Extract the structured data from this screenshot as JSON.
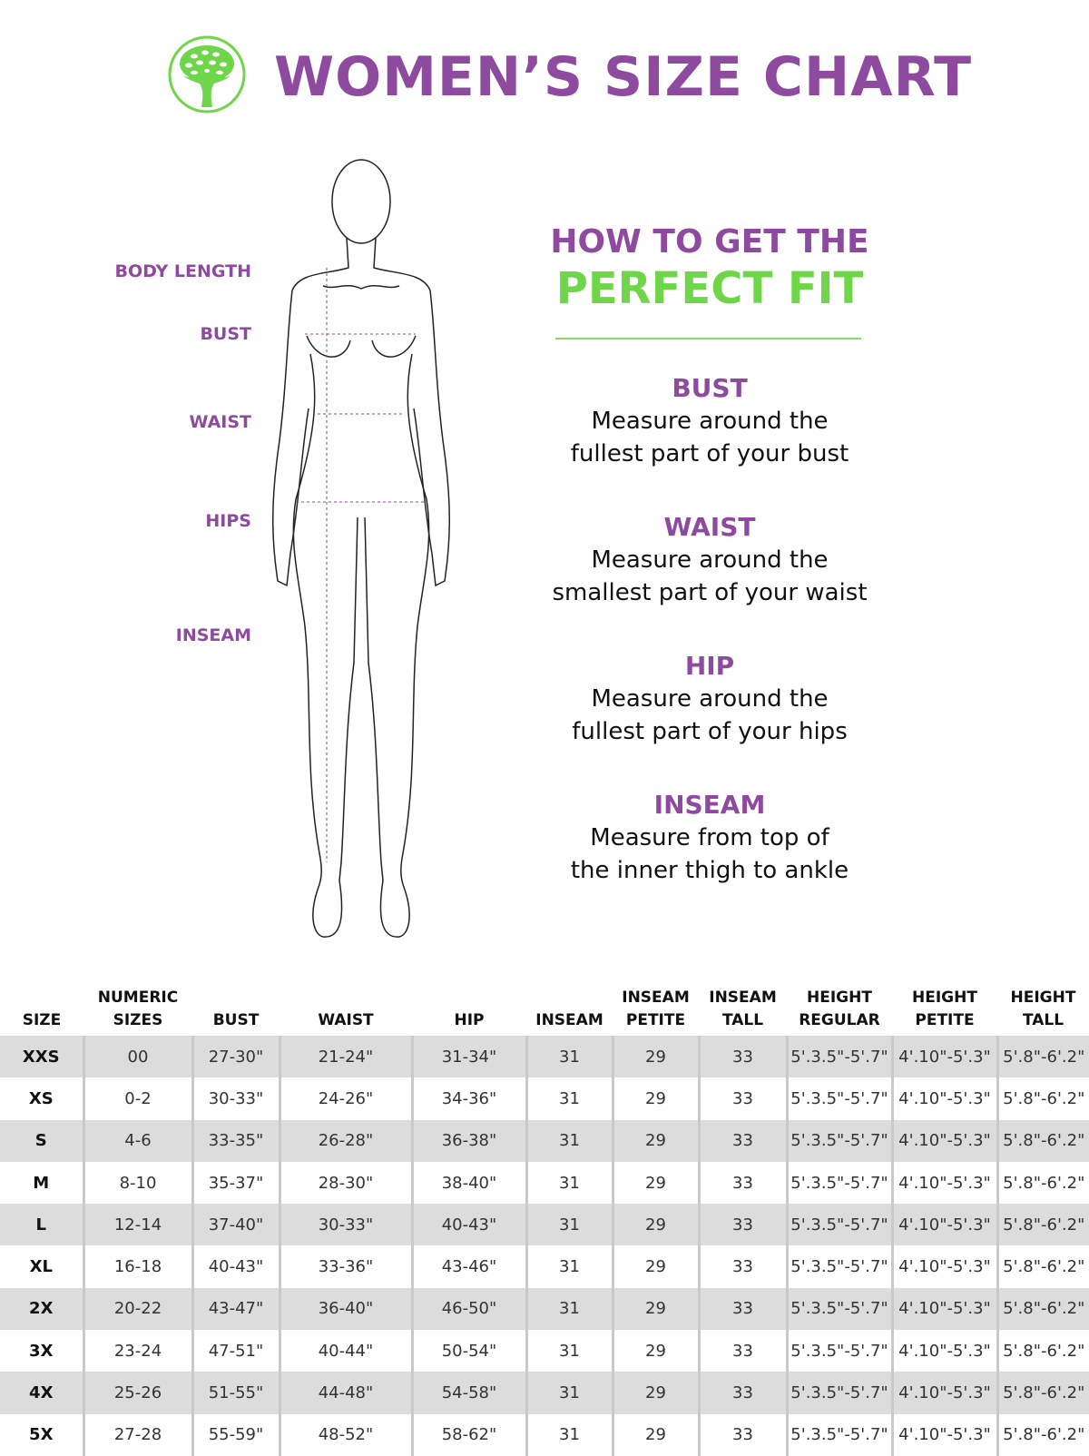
{
  "header": {
    "title": "WOMEN’S SIZE CHART",
    "logo": "tree-in-circle-logo",
    "brand_color": "#8e4a9e",
    "accent_color": "#6fd64a"
  },
  "figure": {
    "labels": [
      "BODY LENGTH",
      "BUST",
      "WAIST",
      "HIPS",
      "INSEAM"
    ]
  },
  "guide": {
    "line1": "HOW TO GET THE",
    "line2": "PERFECT FIT",
    "sections": [
      {
        "title": "BUST",
        "line1": "Measure around the",
        "line2": "fullest part of your bust"
      },
      {
        "title": "WAIST",
        "line1": "Measure around the",
        "line2": "smallest part of your waist"
      },
      {
        "title": "HIP",
        "line1": "Measure around the",
        "line2": "fullest part of your hips"
      },
      {
        "title": "INSEAM",
        "line1": "Measure from top of",
        "line2": "the inner thigh to ankle"
      }
    ]
  },
  "table": {
    "headers": [
      [
        "SIZE",
        ""
      ],
      [
        "NUMERIC",
        "SIZES"
      ],
      [
        "BUST",
        ""
      ],
      [
        "WAIST",
        ""
      ],
      [
        "HIP",
        ""
      ],
      [
        "INSEAM",
        ""
      ],
      [
        "INSEAM",
        "PETITE"
      ],
      [
        "INSEAM",
        "TALL"
      ],
      [
        "HEIGHT",
        "REGULAR"
      ],
      [
        "HEIGHT",
        "PETITE"
      ],
      [
        "HEIGHT",
        "TALL"
      ]
    ],
    "rows": [
      [
        "XXS",
        "00",
        "27-30\"",
        "21-24\"",
        "31-34\"",
        "31",
        "29",
        "33",
        "5'.3.5\"-5'.7\"",
        "4'.10\"-5'.3\"",
        "5'.8\"-6'.2\""
      ],
      [
        "XS",
        "0-2",
        "30-33\"",
        "24-26\"",
        "34-36\"",
        "31",
        "29",
        "33",
        "5'.3.5\"-5'.7\"",
        "4'.10\"-5'.3\"",
        "5'.8\"-6'.2\""
      ],
      [
        "S",
        "4-6",
        "33-35\"",
        "26-28\"",
        "36-38\"",
        "31",
        "29",
        "33",
        "5'.3.5\"-5'.7\"",
        "4'.10\"-5'.3\"",
        "5'.8\"-6'.2\""
      ],
      [
        "M",
        "8-10",
        "35-37\"",
        "28-30\"",
        "38-40\"",
        "31",
        "29",
        "33",
        "5'.3.5\"-5'.7\"",
        "4'.10\"-5'.3\"",
        "5'.8\"-6'.2\""
      ],
      [
        "L",
        "12-14",
        "37-40\"",
        "30-33\"",
        "40-43\"",
        "31",
        "29",
        "33",
        "5'.3.5\"-5'.7\"",
        "4'.10\"-5'.3\"",
        "5'.8\"-6'.2\""
      ],
      [
        "XL",
        "16-18",
        "40-43\"",
        "33-36\"",
        "43-46\"",
        "31",
        "29",
        "33",
        "5'.3.5\"-5'.7\"",
        "4'.10\"-5'.3\"",
        "5'.8\"-6'.2\""
      ],
      [
        "2X",
        "20-22",
        "43-47\"",
        "36-40\"",
        "46-50\"",
        "31",
        "29",
        "33",
        "5'.3.5\"-5'.7\"",
        "4'.10\"-5'.3\"",
        "5'.8\"-6'.2\""
      ],
      [
        "3X",
        "23-24",
        "47-51\"",
        "40-44\"",
        "50-54\"",
        "31",
        "29",
        "33",
        "5'.3.5\"-5'.7\"",
        "4'.10\"-5'.3\"",
        "5'.8\"-6'.2\""
      ],
      [
        "4X",
        "25-26",
        "51-55\"",
        "44-48\"",
        "54-58\"",
        "31",
        "29",
        "33",
        "5'.3.5\"-5'.7\"",
        "4'.10\"-5'.3\"",
        "5'.8\"-6'.2\""
      ],
      [
        "5X",
        "27-28",
        "55-59\"",
        "48-52\"",
        "58-62\"",
        "31",
        "29",
        "33",
        "5'.3.5\"-5'.7\"",
        "4'.10\"-5'.3\"",
        "5'.8\"-6'.2\""
      ]
    ]
  }
}
